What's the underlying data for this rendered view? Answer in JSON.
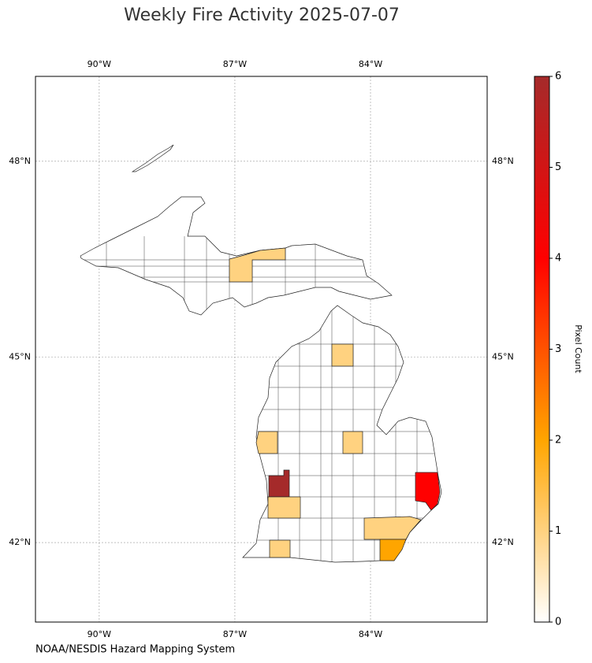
{
  "title": "Weekly Fire Activity 2025-07-07",
  "source": "NOAA/NESDIS Hazard Mapping System",
  "map": {
    "projection": "mercator",
    "xlim": [
      -91.41,
      -81.42
    ],
    "ylim": [
      40.67,
      49.25
    ],
    "lon_ticks": [
      {
        "value": -90,
        "label": "90°W"
      },
      {
        "value": -87,
        "label": "87°W"
      },
      {
        "value": -84,
        "label": "84°W"
      }
    ],
    "lat_ticks": [
      {
        "value": 42,
        "label": "42°N"
      },
      {
        "value": 45,
        "label": "45°N"
      },
      {
        "value": 48,
        "label": "48°N"
      }
    ],
    "grid": true,
    "county_counts": [
      1,
      1,
      1,
      1,
      6,
      1,
      4,
      1,
      2,
      1
    ]
  },
  "colorbar": {
    "label": "Pixel Count",
    "lim": [
      0,
      6
    ],
    "ticks": [
      0,
      1,
      2,
      3,
      4,
      5,
      6
    ],
    "colors": [
      "#ffffff",
      "#ffa500",
      "#ff0000",
      "#a52a2a"
    ]
  }
}
